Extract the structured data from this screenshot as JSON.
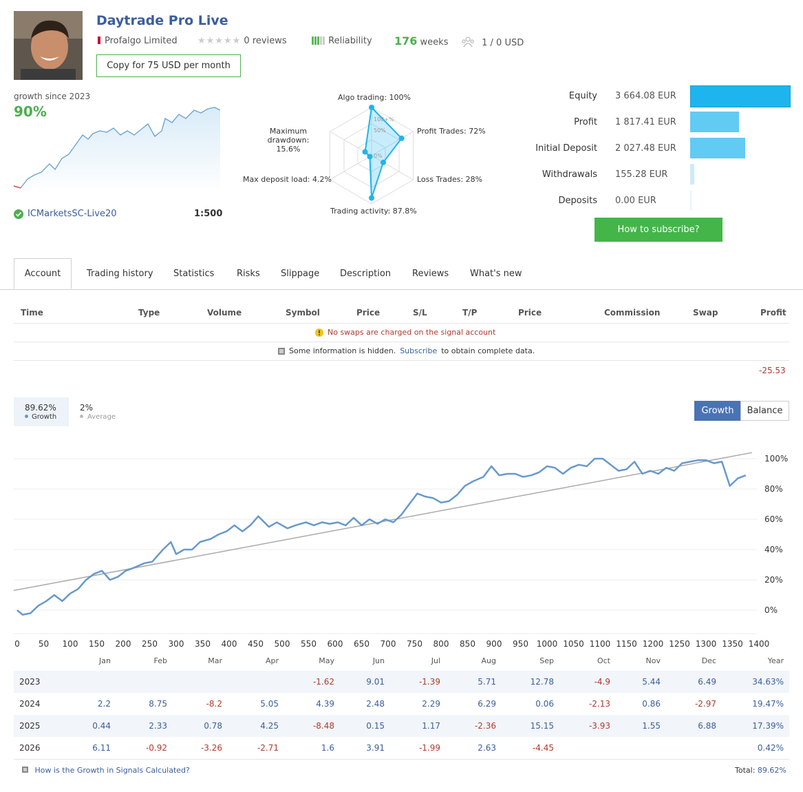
{
  "header": {
    "title": "Daytrade Pro Live",
    "provider": "Profalgo Limited",
    "reviews": "0 reviews",
    "reliability": "Reliability",
    "weeks_num": "176",
    "weeks_label": "weeks",
    "subscribers": "1 / 0 USD",
    "copy_button": "Copy for 75 USD per month"
  },
  "summary": {
    "growth_label": "growth since 2023",
    "growth_value": "90%",
    "broker": "ICMarketsSC-Live20",
    "leverage": "1:500"
  },
  "radar": {
    "algo": "Algo trading: 100%",
    "profit_trades": "Profit Trades: 72%",
    "loss_trades": "Loss Trades: 28%",
    "activity": "Trading activity: 87.8%",
    "deposit_load": "Max deposit load: 4.2%",
    "drawdown_line1": "Maximum drawdown:",
    "drawdown_line2": "15.6%",
    "ring_100": "100+%",
    "ring_50": "50%",
    "ring_0": "0%",
    "values": {
      "algo": 100,
      "profit_trades": 72,
      "loss_trades": 28,
      "activity": 87.8,
      "deposit_load": 4.2,
      "drawdown": 15.6
    }
  },
  "equity": {
    "rows": [
      {
        "label": "Equity",
        "value": "3 664.08 EUR",
        "amount": 3664.08,
        "color": "#1eb5ee"
      },
      {
        "label": "Profit",
        "value": "1 817.41 EUR",
        "amount": 1817.41,
        "color": "#62cbf3"
      },
      {
        "label": "Initial Deposit",
        "value": "2 027.48 EUR",
        "amount": 2027.48,
        "color": "#62cbf3"
      },
      {
        "label": "Withdrawals",
        "value": "155.28 EUR",
        "amount": 155.28,
        "color": "#cdebf8"
      },
      {
        "label": "Deposits",
        "value": "0.00 EUR",
        "amount": 0,
        "color": "#e6f4fb"
      }
    ],
    "subscribe_button": "How to subscribe?"
  },
  "tabs": [
    "Account",
    "Trading history",
    "Statistics",
    "Risks",
    "Slippage",
    "Description",
    "Reviews",
    "What's new"
  ],
  "table": {
    "headers": [
      "Time",
      "Type",
      "Volume",
      "Symbol",
      "Price",
      "S/L",
      "T/P",
      "Price",
      "Commission",
      "Swap",
      "Profit"
    ],
    "swap_note": "No swaps are charged on the signal account",
    "hidden_pre": "Some information is hidden.",
    "hidden_link": "Subscribe",
    "hidden_post": "to obtain complete data.",
    "profit_total": "-25.53"
  },
  "growth_chart": {
    "growth_value": "89.62%",
    "growth_label": "Growth",
    "average_value": "2%",
    "average_label": "Average",
    "btn_growth": "Growth",
    "btn_balance": "Balance"
  },
  "chart_data": {
    "type": "line",
    "x_ticks": [
      0,
      50,
      100,
      150,
      200,
      250,
      300,
      350,
      400,
      450,
      500,
      550,
      600,
      650,
      700,
      750,
      800,
      850,
      900,
      950,
      1000,
      1050,
      1100,
      1150,
      1200,
      1250,
      1300,
      1350,
      1400
    ],
    "y_ticks": [
      "100%",
      "80%",
      "60%",
      "40%",
      "20%",
      "0%"
    ],
    "ylim": [
      0,
      100
    ],
    "xlim": [
      0,
      1400
    ],
    "series": [
      {
        "values_xy": [
          [
            0,
            0
          ],
          [
            10,
            -3
          ],
          [
            25,
            -2
          ],
          [
            40,
            3
          ],
          [
            55,
            6
          ],
          [
            70,
            10
          ],
          [
            85,
            6
          ],
          [
            100,
            11
          ],
          [
            115,
            14
          ],
          [
            130,
            20
          ],
          [
            145,
            24
          ],
          [
            160,
            26
          ],
          [
            175,
            20
          ],
          [
            190,
            22
          ],
          [
            205,
            26
          ],
          [
            220,
            28
          ],
          [
            240,
            31
          ],
          [
            255,
            32
          ],
          [
            275,
            40
          ],
          [
            290,
            45
          ],
          [
            300,
            37
          ],
          [
            315,
            40
          ],
          [
            330,
            40
          ],
          [
            345,
            45
          ],
          [
            365,
            47
          ],
          [
            380,
            50
          ],
          [
            395,
            52
          ],
          [
            410,
            56
          ],
          [
            425,
            52
          ],
          [
            440,
            56
          ],
          [
            455,
            62
          ],
          [
            475,
            55
          ],
          [
            490,
            58
          ],
          [
            510,
            54
          ],
          [
            525,
            56
          ],
          [
            545,
            58
          ],
          [
            560,
            56
          ],
          [
            575,
            58
          ],
          [
            590,
            57
          ],
          [
            605,
            58
          ],
          [
            620,
            56
          ],
          [
            635,
            61
          ],
          [
            650,
            56
          ],
          [
            665,
            60
          ],
          [
            680,
            57
          ],
          [
            695,
            60
          ],
          [
            710,
            58
          ],
          [
            725,
            63
          ],
          [
            740,
            70
          ],
          [
            755,
            77
          ],
          [
            770,
            75
          ],
          [
            785,
            74
          ],
          [
            800,
            71
          ],
          [
            815,
            72
          ],
          [
            830,
            76
          ],
          [
            845,
            82
          ],
          [
            860,
            85
          ],
          [
            880,
            88
          ],
          [
            895,
            95
          ],
          [
            910,
            89
          ],
          [
            925,
            90
          ],
          [
            940,
            90
          ],
          [
            955,
            88
          ],
          [
            970,
            89
          ],
          [
            985,
            91
          ],
          [
            1000,
            95
          ],
          [
            1015,
            94
          ],
          [
            1030,
            90
          ],
          [
            1045,
            94
          ],
          [
            1060,
            96
          ],
          [
            1075,
            95
          ],
          [
            1090,
            100
          ],
          [
            1105,
            100
          ],
          [
            1120,
            96
          ],
          [
            1135,
            92
          ],
          [
            1150,
            93
          ],
          [
            1165,
            98
          ],
          [
            1180,
            90
          ],
          [
            1195,
            92
          ],
          [
            1210,
            90
          ],
          [
            1225,
            94
          ],
          [
            1240,
            92
          ],
          [
            1255,
            97
          ],
          [
            1270,
            98
          ],
          [
            1285,
            99
          ],
          [
            1300,
            99
          ],
          [
            1315,
            97
          ],
          [
            1330,
            98
          ],
          [
            1345,
            82
          ],
          [
            1360,
            87
          ],
          [
            1375,
            89
          ]
        ],
        "name": "Growth",
        "color": "#6699cc"
      },
      {
        "trend": [
          [
            0,
            13
          ],
          [
            1400,
            104
          ]
        ],
        "color": "#aaaaaa"
      }
    ]
  },
  "monthly": {
    "months": [
      "Jan",
      "Feb",
      "Mar",
      "Apr",
      "May",
      "Jun",
      "Jul",
      "Aug",
      "Sep",
      "Oct",
      "Nov",
      "Dec",
      "Year"
    ],
    "rows": [
      {
        "year": "2023",
        "cells": [
          "",
          "",
          "",
          "",
          "-1.62",
          "9.01",
          "-1.39",
          "5.71",
          "12.78",
          "-4.9",
          "5.44",
          "6.49",
          "34.63%"
        ]
      },
      {
        "year": "2024",
        "cells": [
          "2.2",
          "8.75",
          "-8.2",
          "5.05",
          "4.39",
          "2.48",
          "2.29",
          "6.29",
          "0.06",
          "-2.13",
          "0.86",
          "-2.97",
          "19.47%"
        ]
      },
      {
        "year": "2025",
        "cells": [
          "0.44",
          "2.33",
          "0.78",
          "4.25",
          "-8.48",
          "0.15",
          "1.17",
          "-2.36",
          "15.15",
          "-3.93",
          "1.55",
          "6.88",
          "17.39%"
        ]
      },
      {
        "year": "2026",
        "cells": [
          "6.11",
          "-0.92",
          "-3.26",
          "-2.71",
          "1.6",
          "3.91",
          "-1.99",
          "2.63",
          "-4.45",
          "",
          "",
          "",
          "0.42%"
        ]
      }
    ],
    "footer_link": "How is the Growth in Signals Calculated?",
    "total_label": "Total:",
    "total_value": "89.62%"
  },
  "colors": {
    "accent": "#3a5e9e",
    "green": "#4caf50",
    "negative": "#b03a2e",
    "line": "#6699cc"
  },
  "icons": {
    "check": "check-circle-icon",
    "warning": "warning-icon",
    "info": "info-square-icon",
    "users": "users-icon",
    "star": "star-icon"
  }
}
